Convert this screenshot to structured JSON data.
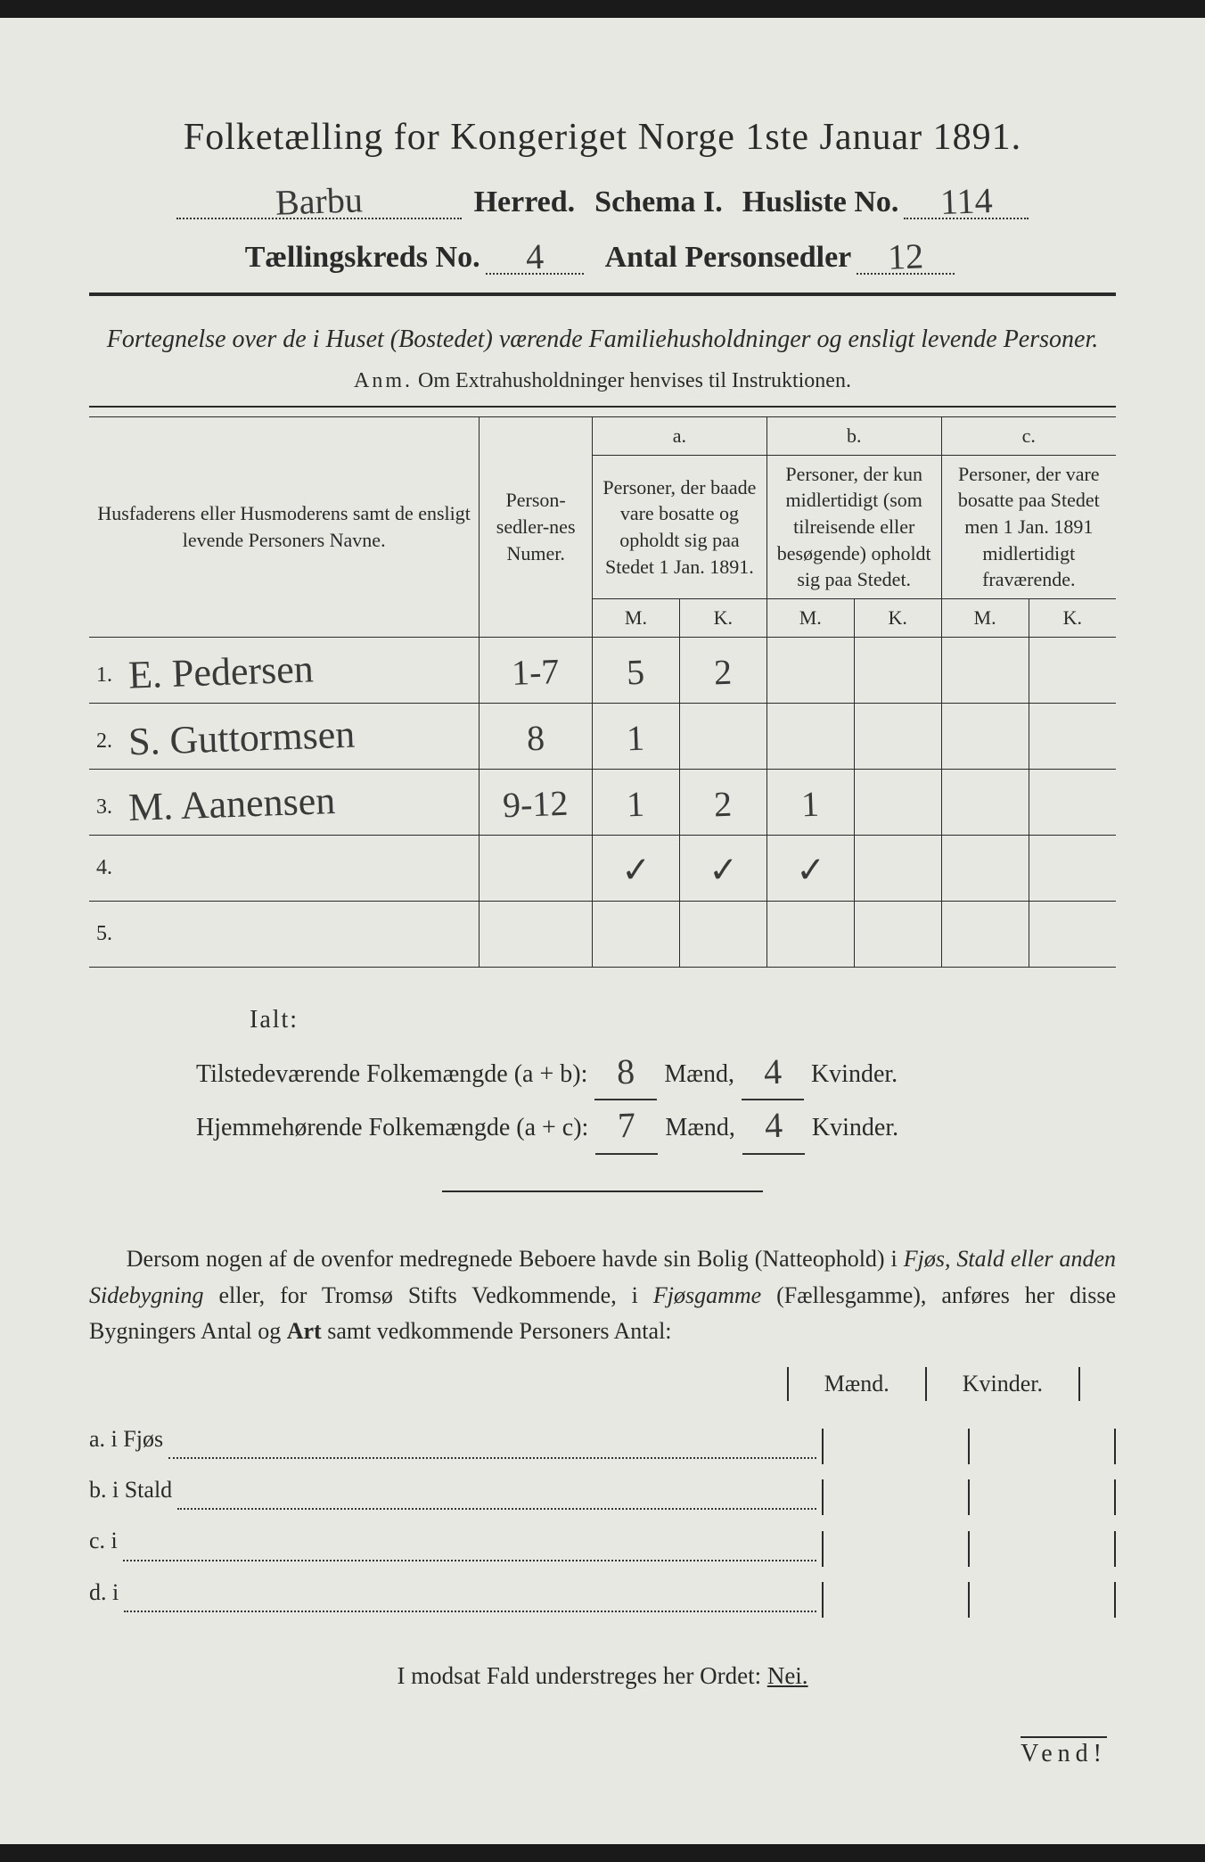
{
  "header": {
    "title": "Folketælling for Kongeriget Norge 1ste Januar 1891.",
    "herred_hand": "Barbu",
    "herred_label": "Herred.",
    "schema_label": "Schema I.",
    "husliste_label": "Husliste No.",
    "husliste_no": "114",
    "kreds_label": "Tællingskreds No.",
    "kreds_no": "4",
    "antal_label": "Antal Personsedler",
    "antal_val": "12"
  },
  "subtitle": "Fortegnelse over de i Huset (Bostedet) værende Familiehusholdninger og ensligt levende Personer.",
  "anm": {
    "lead": "Anm.",
    "text": "Om Extrahusholdninger henvises til Instruktionen."
  },
  "table": {
    "col_name": "Husfaderens eller Husmoderens samt de ensligt levende Personers Navne.",
    "col_num": "Person-sedler-nes Numer.",
    "col_a_letter": "a.",
    "col_a": "Personer, der baade vare bosatte og opholdt sig paa Stedet 1 Jan. 1891.",
    "col_b_letter": "b.",
    "col_b": "Personer, der kun midlertidigt (som tilreisende eller besøgende) opholdt sig paa Stedet.",
    "col_c_letter": "c.",
    "col_c": "Personer, der vare bosatte paa Stedet men 1 Jan. 1891 midlertidigt fraværende.",
    "M": "M.",
    "K": "K.",
    "rows": [
      {
        "n": "1.",
        "name": "E. Pedersen",
        "num": "1-7",
        "aM": "5",
        "aK": "2",
        "bM": "",
        "bK": "",
        "cM": "",
        "cK": ""
      },
      {
        "n": "2.",
        "name": "S. Guttormsen",
        "num": "8",
        "aM": "1",
        "aK": "",
        "bM": "",
        "bK": "",
        "cM": "",
        "cK": ""
      },
      {
        "n": "3.",
        "name": "M. Aanensen",
        "num": "9-12",
        "aM": "1",
        "aK": "2",
        "bM": "1",
        "bK": "",
        "cM": "",
        "cK": ""
      },
      {
        "n": "4.",
        "name": "",
        "num": "",
        "aM": "✓",
        "aK": "✓",
        "bM": "✓",
        "bK": "",
        "cM": "",
        "cK": ""
      },
      {
        "n": "5.",
        "name": "",
        "num": "",
        "aM": "",
        "aK": "",
        "bM": "",
        "bK": "",
        "cM": "",
        "cK": ""
      }
    ]
  },
  "totals": {
    "ialt": "Ialt:",
    "line1_label": "Tilstedeværende Folkemængde (a + b):",
    "line1_m": "8",
    "line1_k": "4",
    "line2_label": "Hjemmehørende Folkemængde (a + c):",
    "line2_m": "7",
    "line2_k": "4",
    "maend": "Mænd,",
    "kvinder": "Kvinder."
  },
  "para": "Dersom nogen af de ovenfor medregnede Beboere havde sin Bolig (Natteophold) i Fjøs, Stald eller anden Sidebygning eller, for Tromsø Stifts Vedkommende, i Fjøsgamme (Fællesgamme), anføres her disse Bygningers Antal og Art samt vedkommende Personers Antal:",
  "mk": {
    "m": "Mænd.",
    "k": "Kvinder."
  },
  "list": {
    "a": "a.  i      Fjøs",
    "b": "b.  i      Stald",
    "c": "c.  i",
    "d": "d.  i"
  },
  "modsat": {
    "lead": "I modsat Fald understreges her Ordet:",
    "nei": "Nei."
  },
  "vend": "Vend!",
  "colors": {
    "paper": "#e8e8e2",
    "ink": "#2a2a2a",
    "hand": "#3a3a3a"
  }
}
